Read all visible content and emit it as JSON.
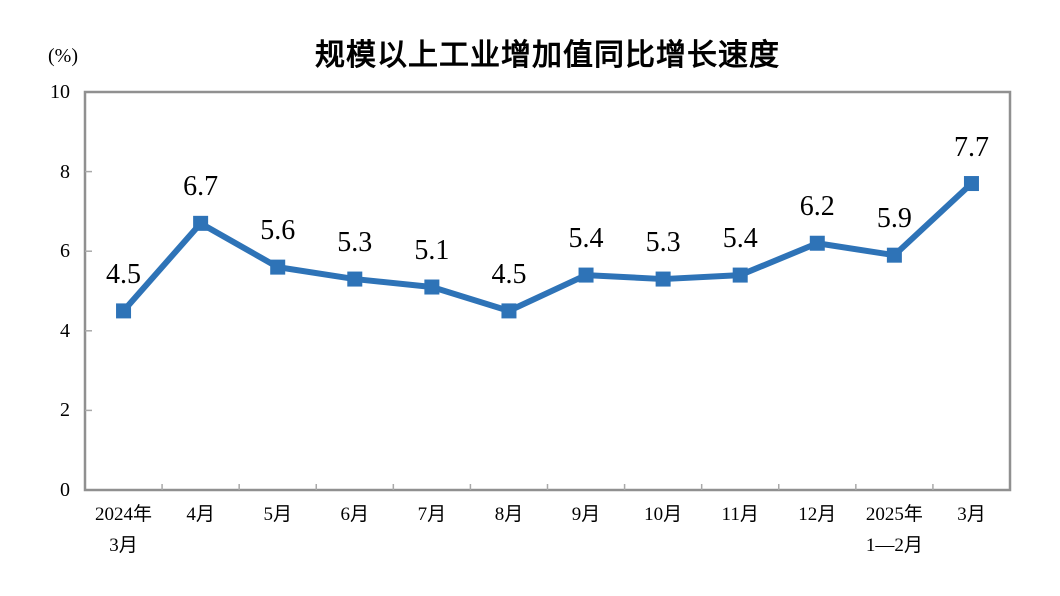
{
  "chart_data": {
    "type": "line",
    "title": "规模以上工业增加值同比增长速度",
    "unit_label": "(%)",
    "categories": [
      [
        "2024年",
        "3月"
      ],
      [
        "4月"
      ],
      [
        "5月"
      ],
      [
        "6月"
      ],
      [
        "7月"
      ],
      [
        "8月"
      ],
      [
        "9月"
      ],
      [
        "10月"
      ],
      [
        "11月"
      ],
      [
        "12月"
      ],
      [
        "2025年",
        "1—2月"
      ],
      [
        "3月"
      ]
    ],
    "values": [
      4.5,
      6.7,
      5.6,
      5.3,
      5.1,
      4.5,
      5.4,
      5.3,
      5.4,
      6.2,
      5.9,
      7.7
    ],
    "data_labels": [
      "4.5",
      "6.7",
      "5.6",
      "5.3",
      "5.1",
      "4.5",
      "5.4",
      "5.3",
      "5.4",
      "6.2",
      "5.9",
      "7.7"
    ],
    "y_ticks": [
      0,
      2,
      4,
      6,
      8,
      10
    ],
    "ylim": [
      0,
      10
    ],
    "xlabel": "",
    "ylabel": "(%)",
    "grid": false,
    "legend": "none",
    "line_color": "#2E73B7",
    "marker": "square",
    "marker_size": 15,
    "line_width": 6,
    "axis_color": "#909090",
    "tick_color": "#A9A9A9",
    "text_color": "#000000",
    "background_color": "#FFFFFF"
  }
}
